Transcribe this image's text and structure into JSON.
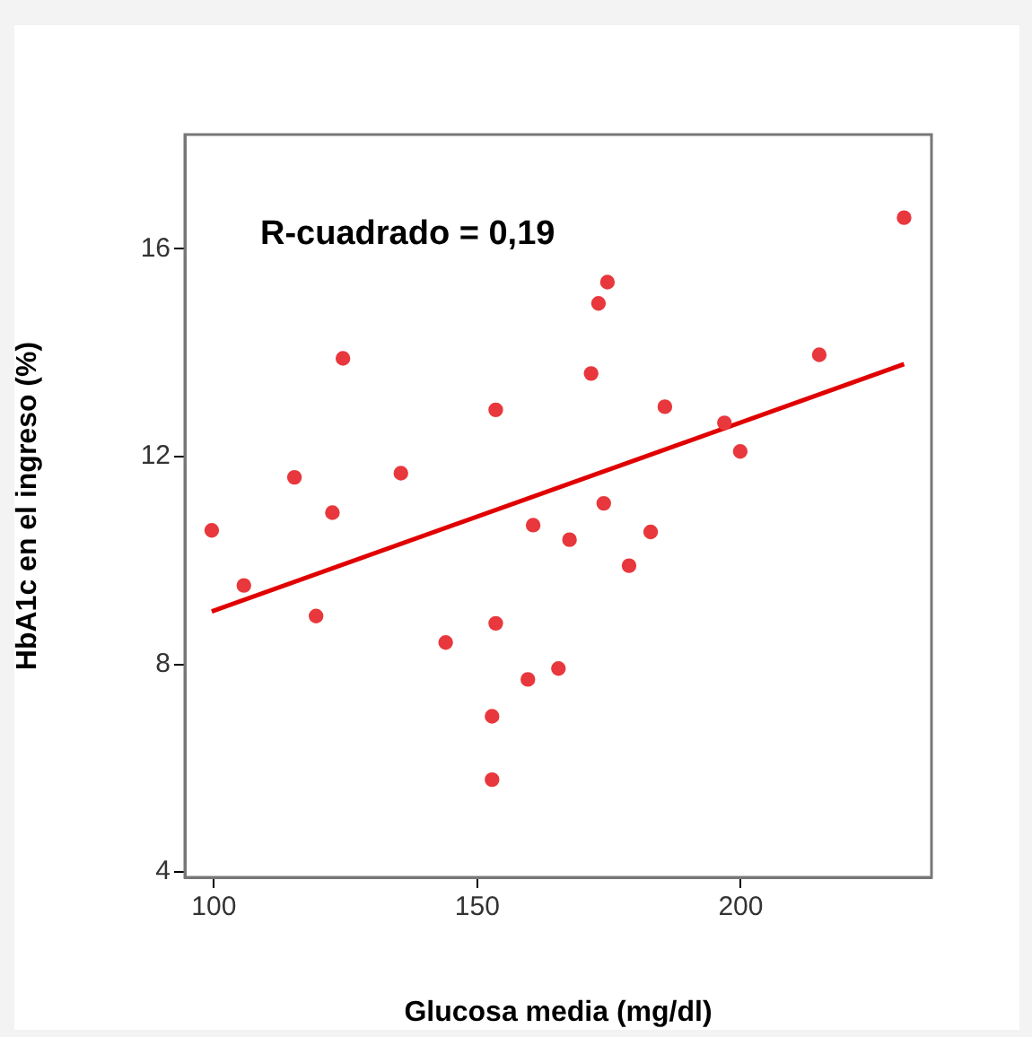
{
  "chart_data": {
    "type": "scatter",
    "xlabel": "Glucosa media (mg/dl)",
    "ylabel": "HbA1c en el ingreso (%)",
    "annotations": [
      "R-cuadrado = 0,19"
    ],
    "xlim": [
      94.5,
      236.2
    ],
    "xticks": [
      100,
      150,
      200
    ],
    "ylim": [
      3.9,
      18.2
    ],
    "yticks": [
      4,
      8,
      12,
      16
    ],
    "grid": false,
    "legend": false,
    "marker": "circle",
    "series": [
      {
        "color": "#e8383d",
        "x": [
          99.6,
          105.7,
          115.3,
          119.4,
          122.5,
          124.5,
          135.5,
          144,
          153.5,
          153.5,
          152.8,
          152.8,
          160.6,
          159.6,
          165.4,
          167.5,
          171.6,
          173,
          174.7,
          174,
          178.8,
          182.9,
          185.6,
          196.9,
          199.9,
          214.9,
          231
        ],
        "values": [
          10.58,
          9.52,
          11.6,
          8.93,
          10.92,
          13.89,
          11.68,
          8.42,
          12.9,
          8.79,
          7.0,
          5.78,
          10.68,
          7.71,
          7.92,
          10.4,
          13.6,
          14.95,
          15.36,
          11.1,
          9.9,
          10.55,
          12.96,
          12.65,
          12.1,
          13.96,
          16.6
        ]
      },
      {
        "type": "line",
        "color": "#e00000",
        "marker": "none",
        "x": [
          99.6,
          231
        ],
        "values": [
          9.02,
          13.78
        ]
      }
    ]
  }
}
